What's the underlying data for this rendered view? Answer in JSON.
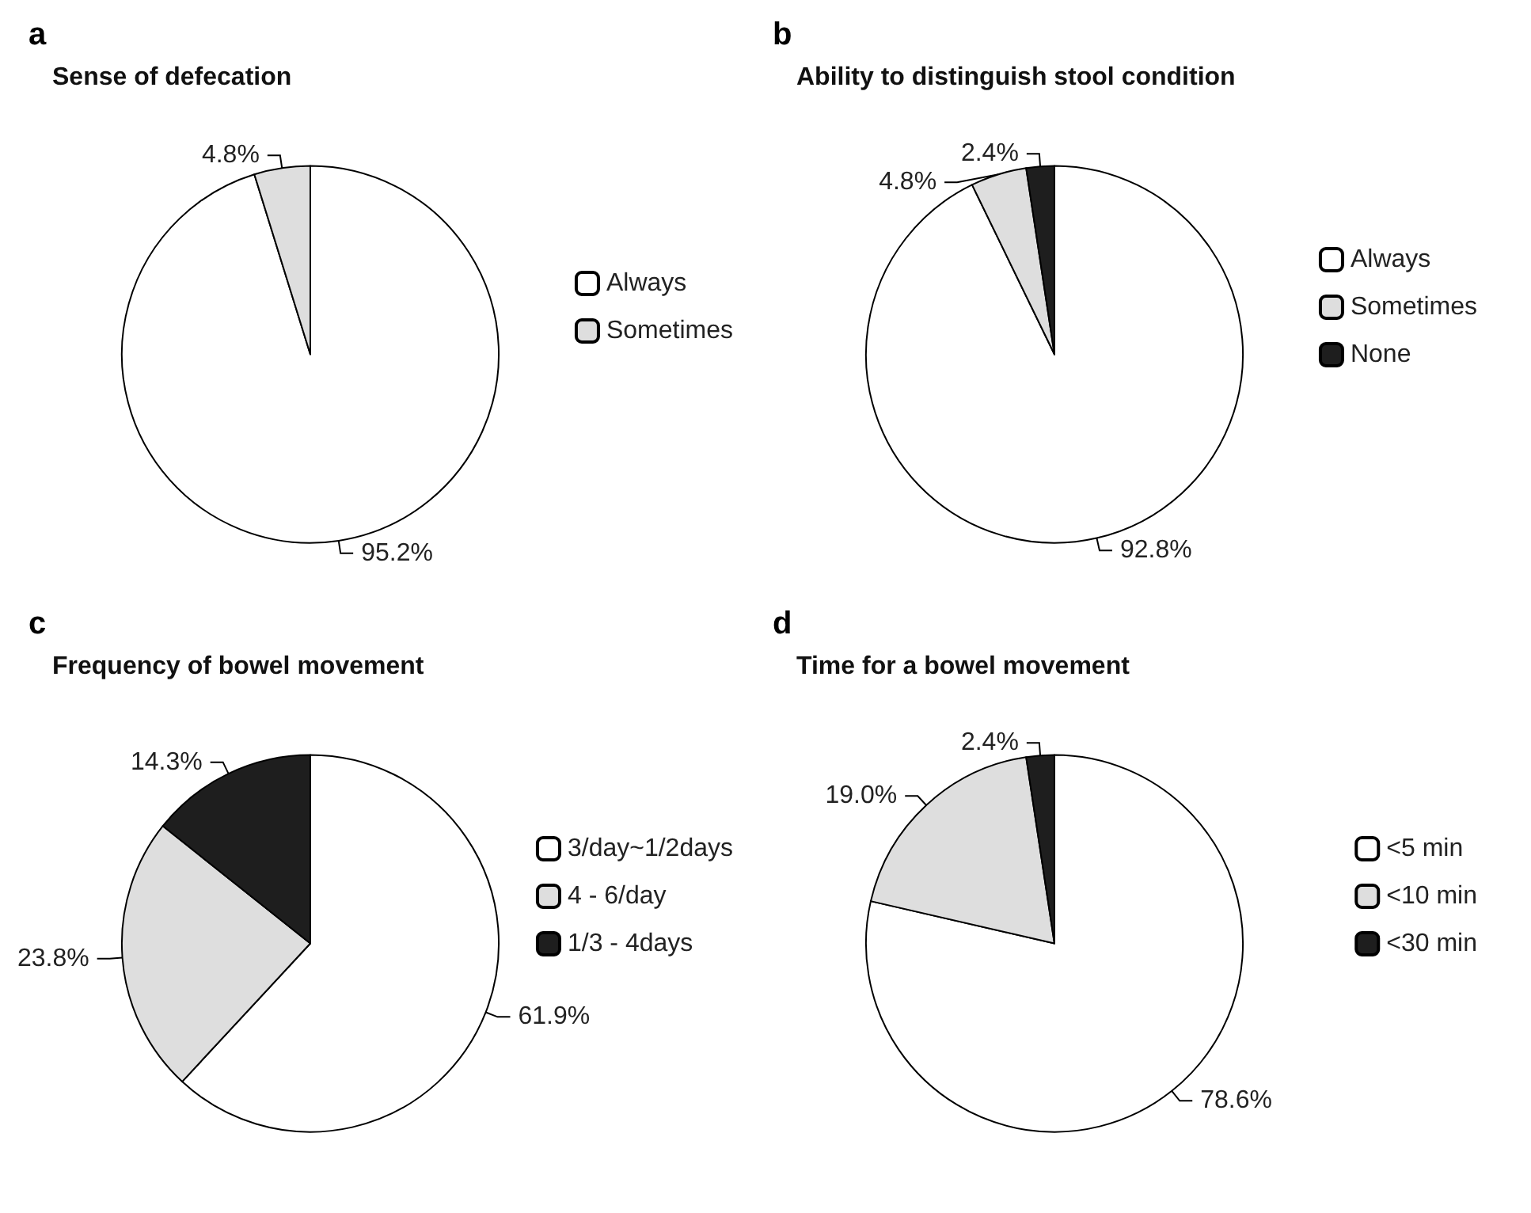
{
  "chart_data": [
    {
      "type": "pie",
      "title": "Sense of defecation",
      "annotations": [
        "a"
      ],
      "categories": [
        "Always",
        "Sometimes"
      ],
      "values": [
        95.2,
        4.8
      ],
      "value_labels": [
        "95.2%",
        "4.8%"
      ],
      "colors": [
        "#ffffff",
        "#dedede"
      ],
      "legend": "right"
    },
    {
      "type": "pie",
      "title": "Ability to distinguish stool condition",
      "annotations": [
        "b"
      ],
      "categories": [
        "Always",
        "Sometimes",
        "None"
      ],
      "values": [
        92.8,
        4.8,
        2.4
      ],
      "value_labels": [
        "92.8%",
        "4.8%",
        "2.4%"
      ],
      "colors": [
        "#ffffff",
        "#dedede",
        "#1e1e1e"
      ],
      "legend": "right"
    },
    {
      "type": "pie",
      "title": "Frequency of bowel movement",
      "annotations": [
        "c"
      ],
      "categories": [
        "3/day~1/2days",
        "4 - 6/day",
        "1/3 - 4days"
      ],
      "values": [
        61.9,
        23.8,
        14.3
      ],
      "value_labels": [
        "61.9%",
        "23.8%",
        "14.3%"
      ],
      "colors": [
        "#ffffff",
        "#dedede",
        "#1e1e1e"
      ],
      "legend": "right"
    },
    {
      "type": "pie",
      "title": "Time for a bowel movement",
      "annotations": [
        "d"
      ],
      "categories": [
        "<5 min",
        "<10 min",
        "<30 min"
      ],
      "values": [
        78.6,
        19.0,
        2.4
      ],
      "value_labels": [
        "78.6%",
        "19.0%",
        "2.4%"
      ],
      "colors": [
        "#ffffff",
        "#dedede",
        "#1e1e1e"
      ],
      "legend": "right"
    }
  ]
}
